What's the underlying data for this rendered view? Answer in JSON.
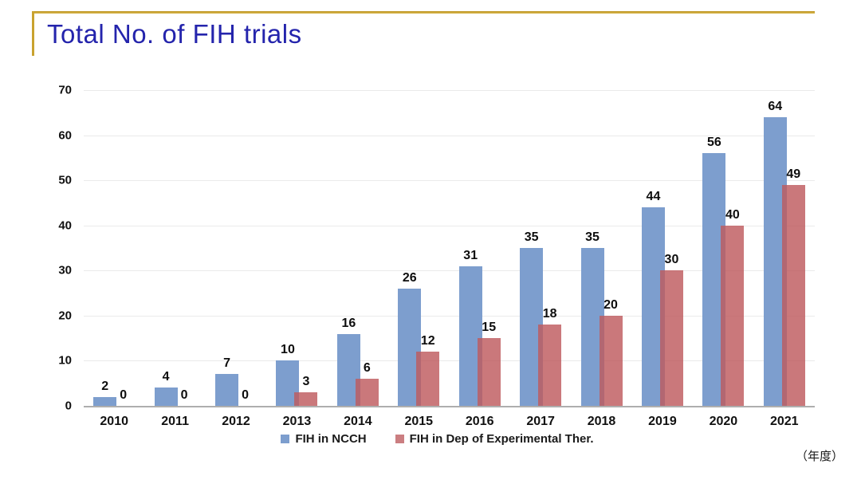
{
  "header": {
    "title": "Total No. of FIH trials"
  },
  "chart_data": {
    "type": "bar",
    "title": "Total No. of FIH trials",
    "categories": [
      "2010",
      "2011",
      "2012",
      "2013",
      "2014",
      "2015",
      "2016",
      "2017",
      "2018",
      "2019",
      "2020",
      "2021"
    ],
    "series": [
      {
        "name": "FIH in NCCH",
        "color": "#7d9ece",
        "values": [
          2,
          4,
          7,
          10,
          16,
          26,
          31,
          35,
          35,
          44,
          56,
          64
        ]
      },
      {
        "name": "FIH in Dep of Experimental Ther.",
        "color": "#cb7e81",
        "fill_rgba": "rgba(190,90,94,0.82)",
        "values": [
          0,
          0,
          0,
          3,
          6,
          12,
          15,
          18,
          20,
          30,
          40,
          49
        ]
      }
    ],
    "ylim": [
      0,
      70
    ],
    "yticks": [
      0,
      10,
      20,
      30,
      40,
      50,
      60,
      70
    ],
    "grid": true,
    "legend_position": "bottom",
    "bars_overlap": true
  },
  "footnote": {
    "text": "（年度）"
  },
  "accents": {
    "gold_rule": "#c9a22f",
    "title_color": "#2424ac"
  }
}
